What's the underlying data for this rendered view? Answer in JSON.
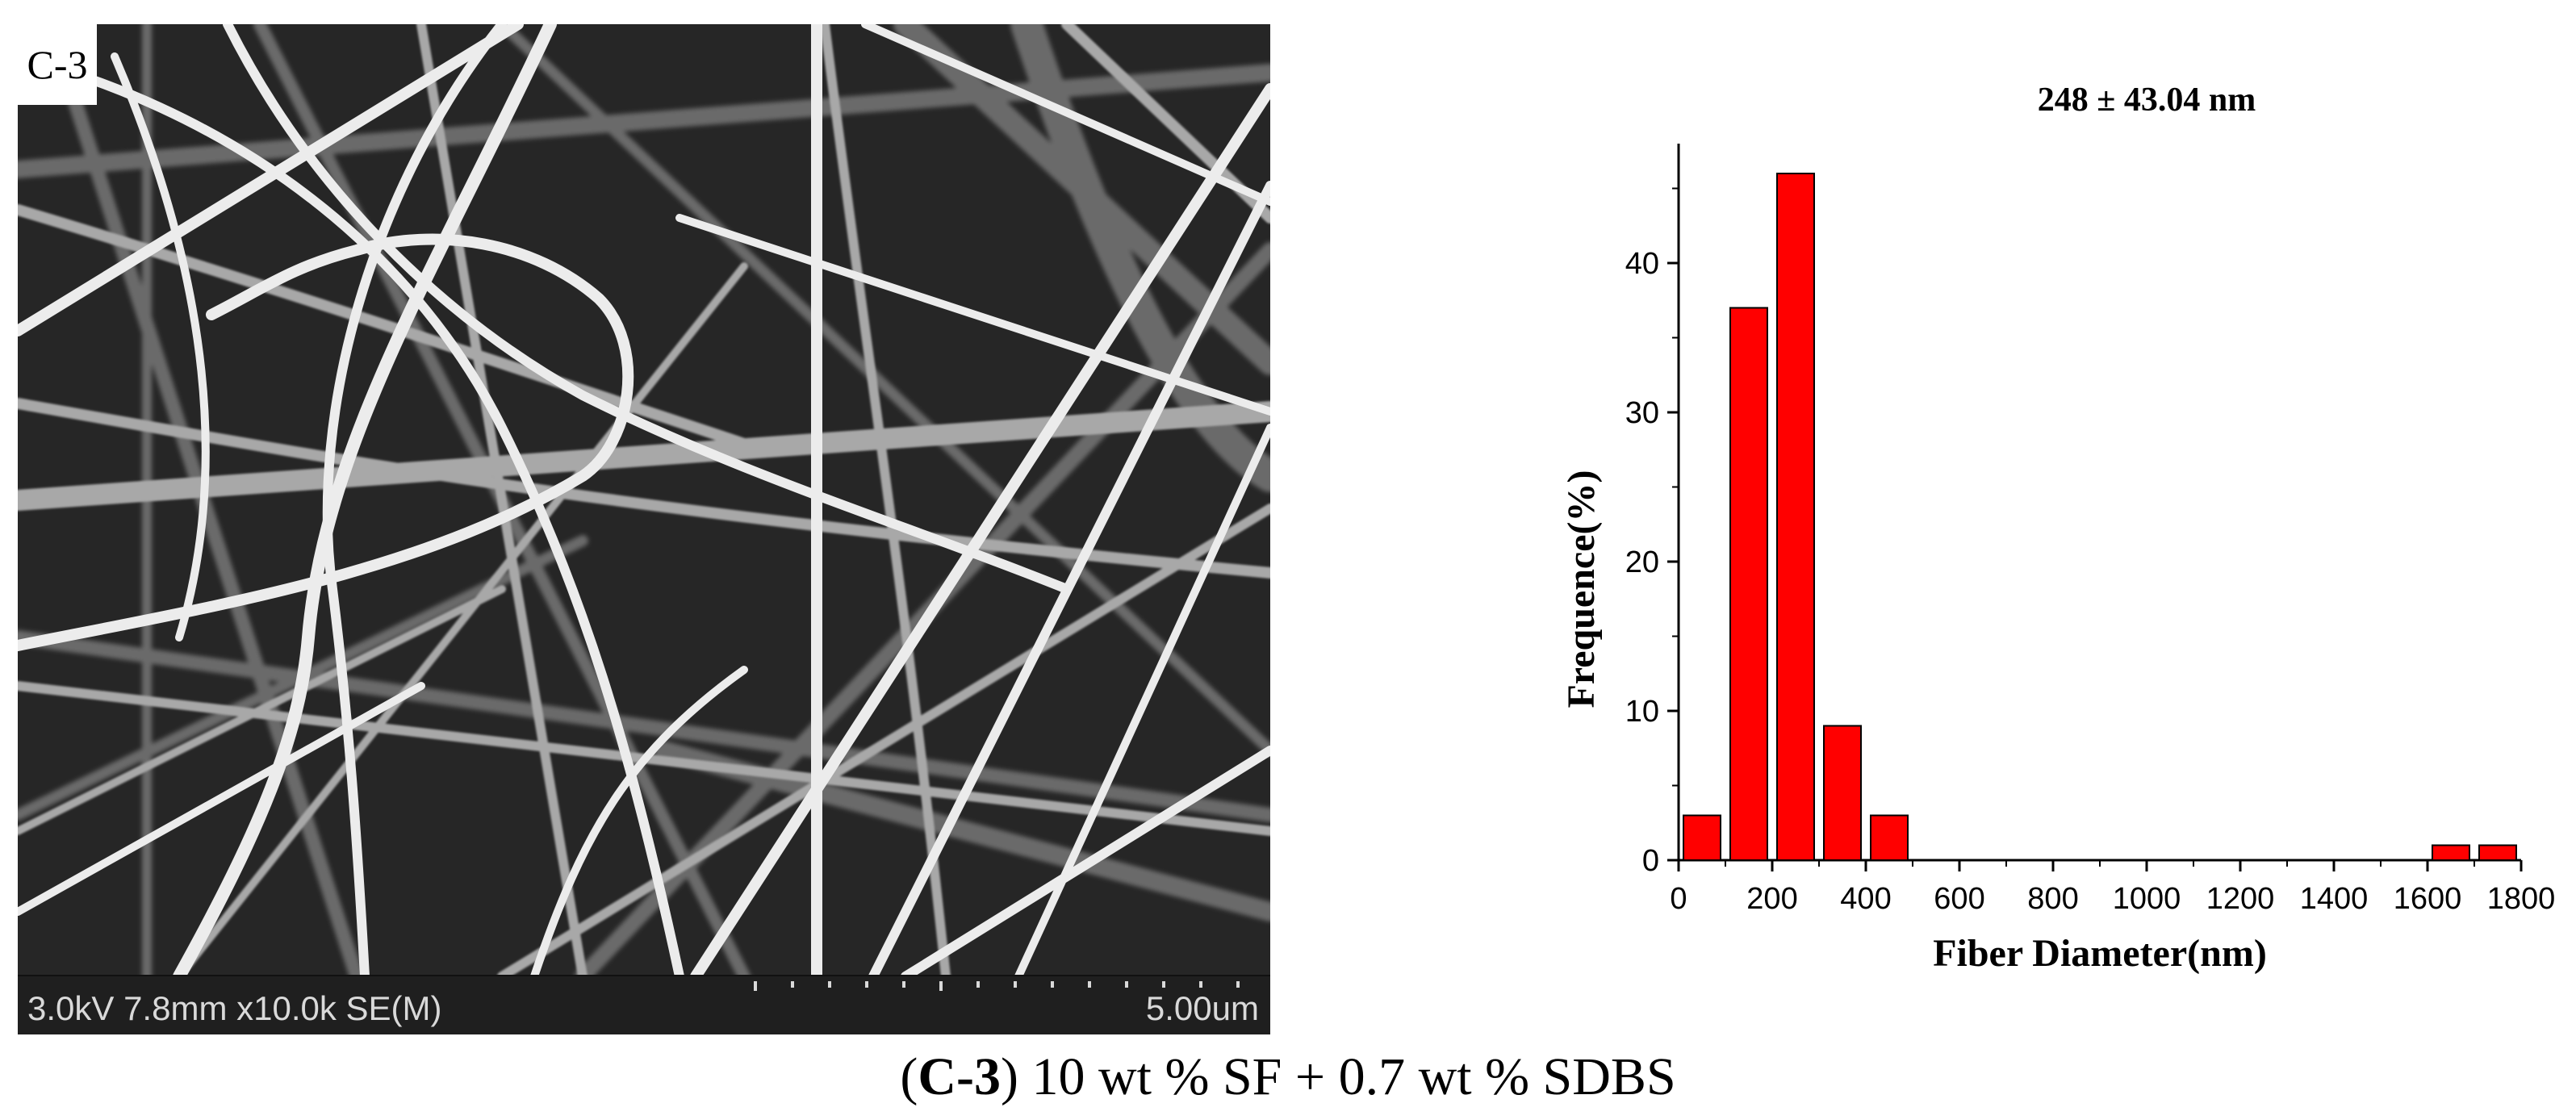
{
  "sem": {
    "panel_label": "C-3",
    "info_text": "3.0kV 7.8mm x10.0k SE(M)",
    "scale_text": "5.00um"
  },
  "chart_data": {
    "type": "bar",
    "title": "248 ± 43.04 nm",
    "xlabel": "Fiber Diameter(nm)",
    "ylabel": "Frequence(%)",
    "xlim": [
      0,
      1800
    ],
    "ylim": [
      0,
      48
    ],
    "x_ticks": [
      0,
      200,
      400,
      600,
      800,
      1000,
      1200,
      1400,
      1600,
      1800
    ],
    "y_ticks": [
      0,
      10,
      20,
      30,
      40
    ],
    "bin_width": 100,
    "bins": [
      {
        "center": 50,
        "value": 3
      },
      {
        "center": 150,
        "value": 37
      },
      {
        "center": 250,
        "value": 46
      },
      {
        "center": 350,
        "value": 9
      },
      {
        "center": 450,
        "value": 3
      },
      {
        "center": 1650,
        "value": 1
      },
      {
        "center": 1750,
        "value": 1
      }
    ],
    "bar_color": "#ff0000",
    "bar_edge_color": "#000000",
    "grid": false,
    "legend": "none"
  },
  "caption": {
    "open": "(",
    "bold": "C-3",
    "rest": ") 10 wt % SF + 0.7 wt % SDBS"
  }
}
